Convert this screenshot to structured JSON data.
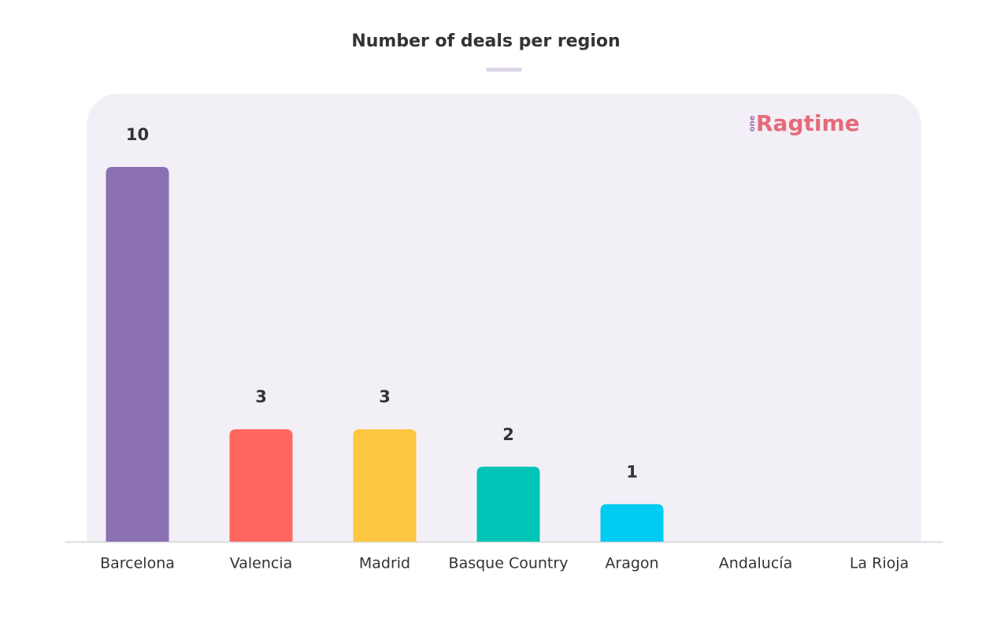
{
  "chart_data": {
    "type": "bar",
    "title": "Number of deals per region",
    "logo": {
      "prefix": "one",
      "name": "Ragtime"
    },
    "categories": [
      "Barcelona",
      "Valencia",
      "Madrid",
      "Basque Country",
      "Aragon",
      "Andalucía",
      "La Rioja"
    ],
    "values": [
      10,
      3,
      3,
      2,
      1,
      null,
      null
    ],
    "colors": [
      "#8b71b3",
      "#ff6660",
      "#fec641",
      "#00c4b6",
      "#00cbf0",
      "#cccccc",
      "#cccccc"
    ]
  }
}
